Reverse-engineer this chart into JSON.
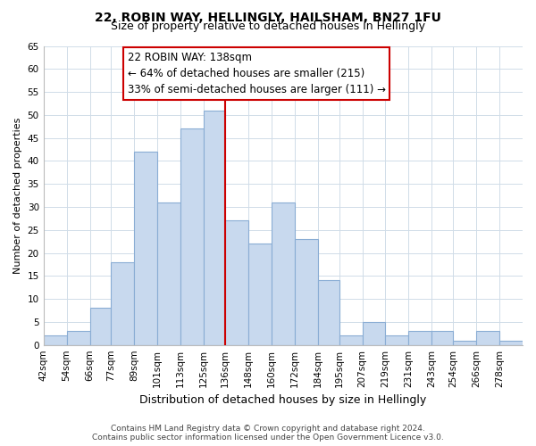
{
  "title": "22, ROBIN WAY, HELLINGLY, HAILSHAM, BN27 1FU",
  "subtitle": "Size of property relative to detached houses in Hellingly",
  "xlabel": "Distribution of detached houses by size in Hellingly",
  "ylabel": "Number of detached properties",
  "bin_labels": [
    "42sqm",
    "54sqm",
    "66sqm",
    "77sqm",
    "89sqm",
    "101sqm",
    "113sqm",
    "125sqm",
    "136sqm",
    "148sqm",
    "160sqm",
    "172sqm",
    "184sqm",
    "195sqm",
    "207sqm",
    "219sqm",
    "231sqm",
    "243sqm",
    "254sqm",
    "266sqm",
    "278sqm"
  ],
  "bin_edges": [
    42,
    54,
    66,
    77,
    89,
    101,
    113,
    125,
    136,
    148,
    160,
    172,
    184,
    195,
    207,
    219,
    231,
    243,
    254,
    266,
    278
  ],
  "counts": [
    2,
    3,
    8,
    18,
    42,
    31,
    47,
    51,
    27,
    22,
    31,
    23,
    14,
    2,
    5,
    2,
    3,
    3,
    1,
    3,
    1
  ],
  "bar_color": "#c8d9ee",
  "bar_edge_color": "#8aadd4",
  "vline_x": 136,
  "vline_color": "#cc0000",
  "annotation_line1": "22 ROBIN WAY: 138sqm",
  "annotation_line2": "← 64% of detached houses are smaller (215)",
  "annotation_line3": "33% of semi-detached houses are larger (111) →",
  "ylim": [
    0,
    65
  ],
  "yticks": [
    0,
    5,
    10,
    15,
    20,
    25,
    30,
    35,
    40,
    45,
    50,
    55,
    60,
    65
  ],
  "footer_line1": "Contains HM Land Registry data © Crown copyright and database right 2024.",
  "footer_line2": "Contains public sector information licensed under the Open Government Licence v3.0.",
  "title_fontsize": 10,
  "subtitle_fontsize": 9,
  "xlabel_fontsize": 9,
  "ylabel_fontsize": 8,
  "tick_fontsize": 7.5,
  "footer_fontsize": 6.5,
  "annotation_fontsize": 8.5,
  "bg_color": "#ffffff",
  "grid_color": "#d0dce8"
}
